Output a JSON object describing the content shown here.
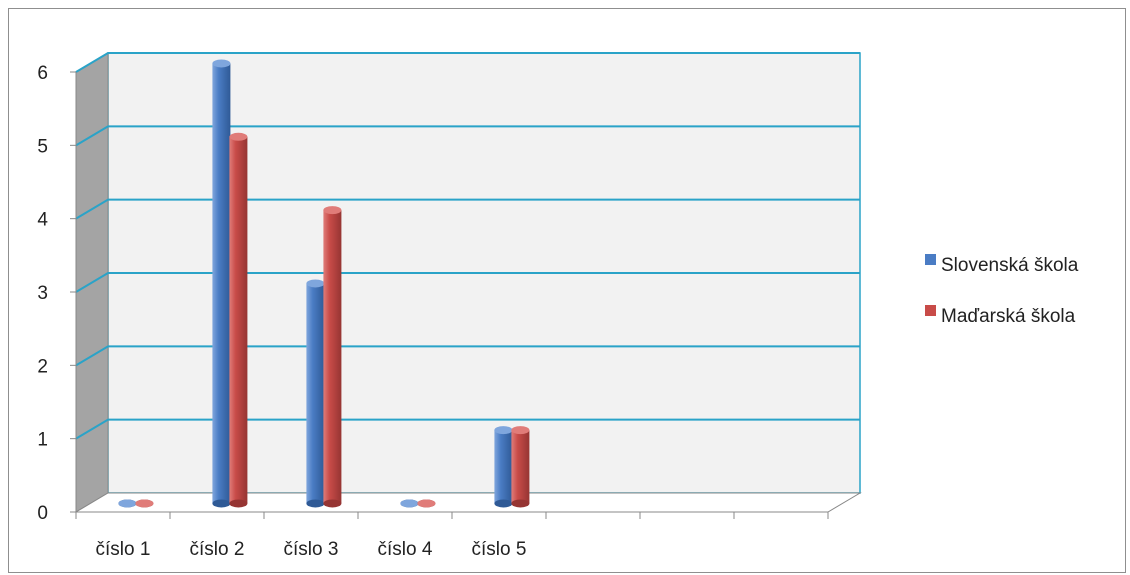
{
  "chart_data": {
    "type": "bar",
    "categories": [
      "číslo 1",
      "číslo 2",
      "číslo 3",
      "číslo 4",
      "číslo 5",
      "",
      "",
      ""
    ],
    "series": [
      {
        "name": "Slovenská škola",
        "values": [
          0,
          6,
          3,
          0,
          1,
          null,
          null,
          null
        ]
      },
      {
        "name": "Maďarská škola",
        "values": [
          0,
          5,
          4,
          0,
          1,
          null,
          null,
          null
        ]
      }
    ],
    "ylim": [
      0,
      6
    ],
    "yticks": [
      "0",
      "1",
      "2",
      "3",
      "4",
      "5",
      "6"
    ],
    "grid": true,
    "legend_position": "right",
    "colors": {
      "series": [
        "#4a7cc4",
        "#c84b48"
      ],
      "series_dark": [
        "#2f5a96",
        "#963533"
      ],
      "series_light": [
        "#7fa6dd",
        "#e07c79"
      ],
      "gridline": "#2aa3c8",
      "wall": "#f2f2f2",
      "side_wall": "#a4a4a4",
      "axis": "#888888"
    }
  }
}
